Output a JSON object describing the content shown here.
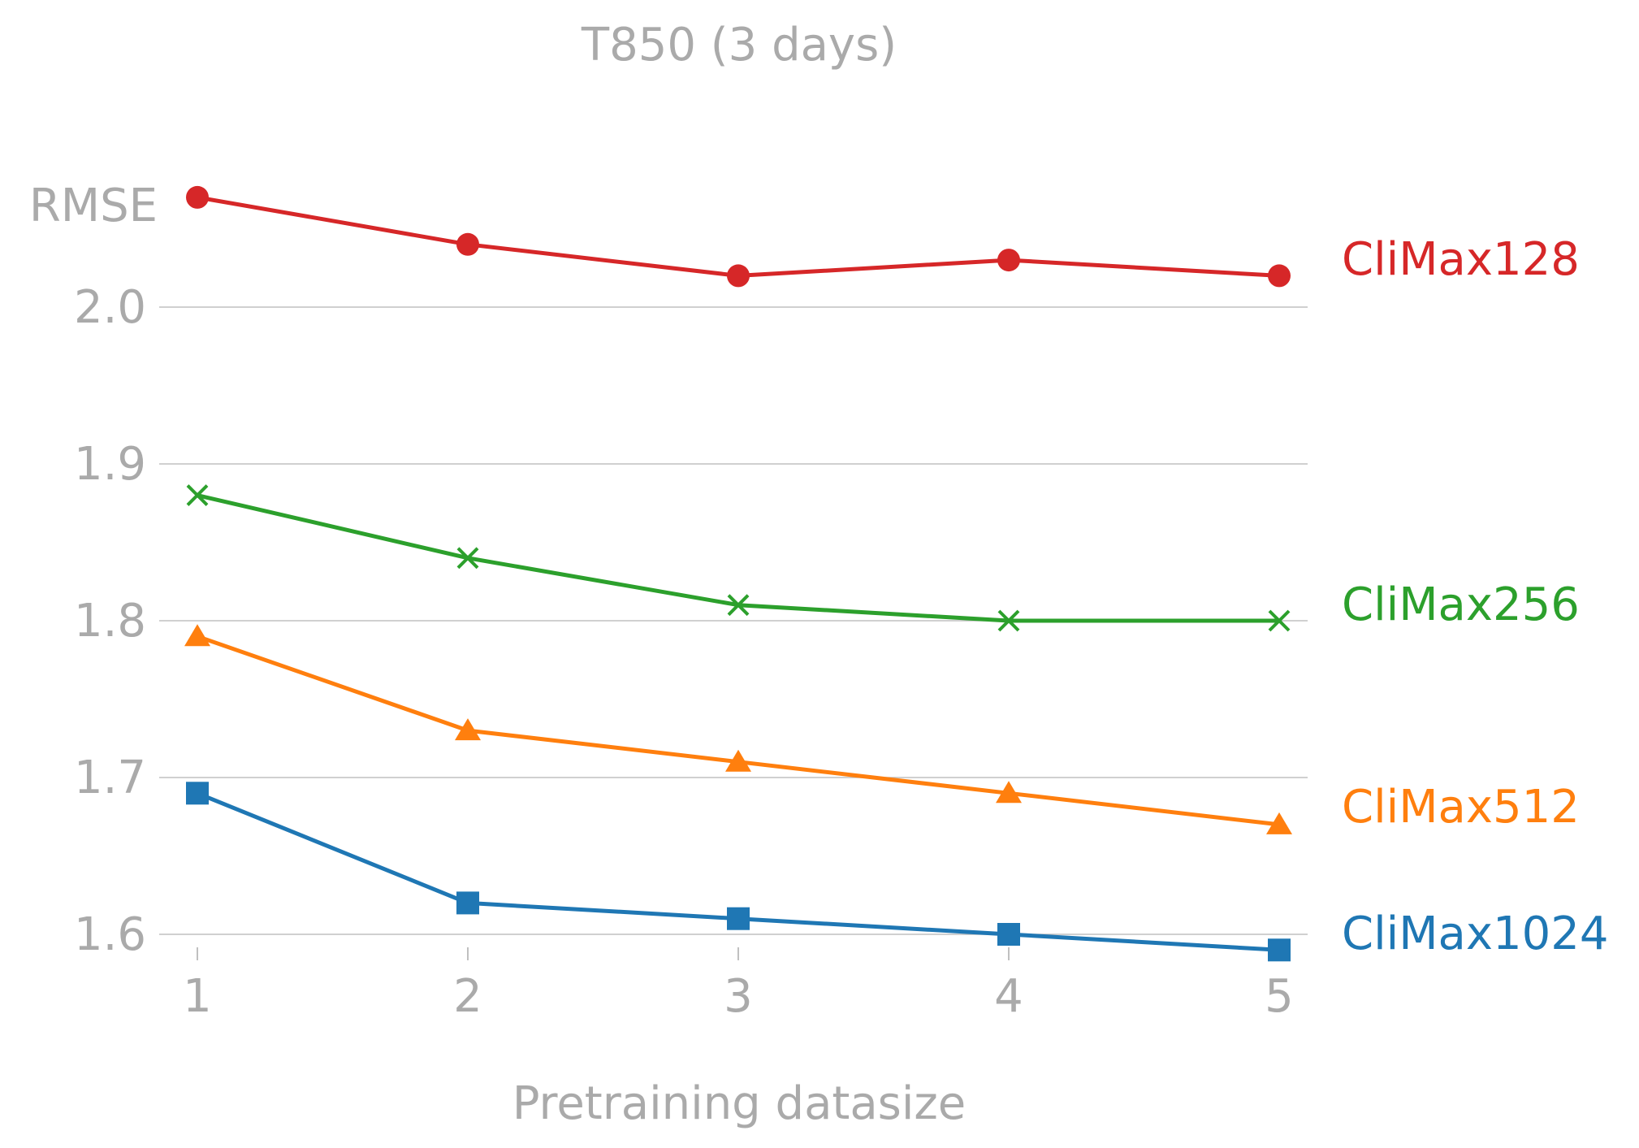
{
  "chart_data": {
    "type": "line",
    "title": "T850 (3 days)",
    "xlabel": "Pretraining datasize",
    "ylabel": "RMSE",
    "x": [
      1,
      2,
      3,
      4,
      5
    ],
    "x_tick_labels": [
      "1",
      "2",
      "3",
      "4",
      "5"
    ],
    "ylim": [
      1.58,
      2.07
    ],
    "xlim": [
      0.92,
      5.1
    ],
    "y_ticks": [
      1.6,
      1.7,
      1.8,
      1.9,
      2.0
    ],
    "y_tick_labels": [
      "1.6",
      "1.7",
      "1.8",
      "1.9",
      "2.0"
    ],
    "grid": "horizontal",
    "legend": "inline labels at right end of each line",
    "series": [
      {
        "name": "CliMax128",
        "values": [
          2.07,
          2.04,
          2.02,
          2.03,
          2.02
        ],
        "color": "#d62728",
        "marker": "circle"
      },
      {
        "name": "CliMax256",
        "values": [
          1.88,
          1.84,
          1.81,
          1.8,
          1.8
        ],
        "color": "#2ca02c",
        "marker": "x"
      },
      {
        "name": "CliMax512",
        "values": [
          1.79,
          1.73,
          1.71,
          1.69,
          1.67
        ],
        "color": "#ff7f0e",
        "marker": "triangle"
      },
      {
        "name": "CliMax1024",
        "values": [
          1.69,
          1.62,
          1.61,
          1.6,
          1.59
        ],
        "color": "#1f77b4",
        "marker": "square"
      }
    ],
    "colors": {
      "text": "#aaaaaa",
      "grid": "#c0c0c0"
    }
  }
}
